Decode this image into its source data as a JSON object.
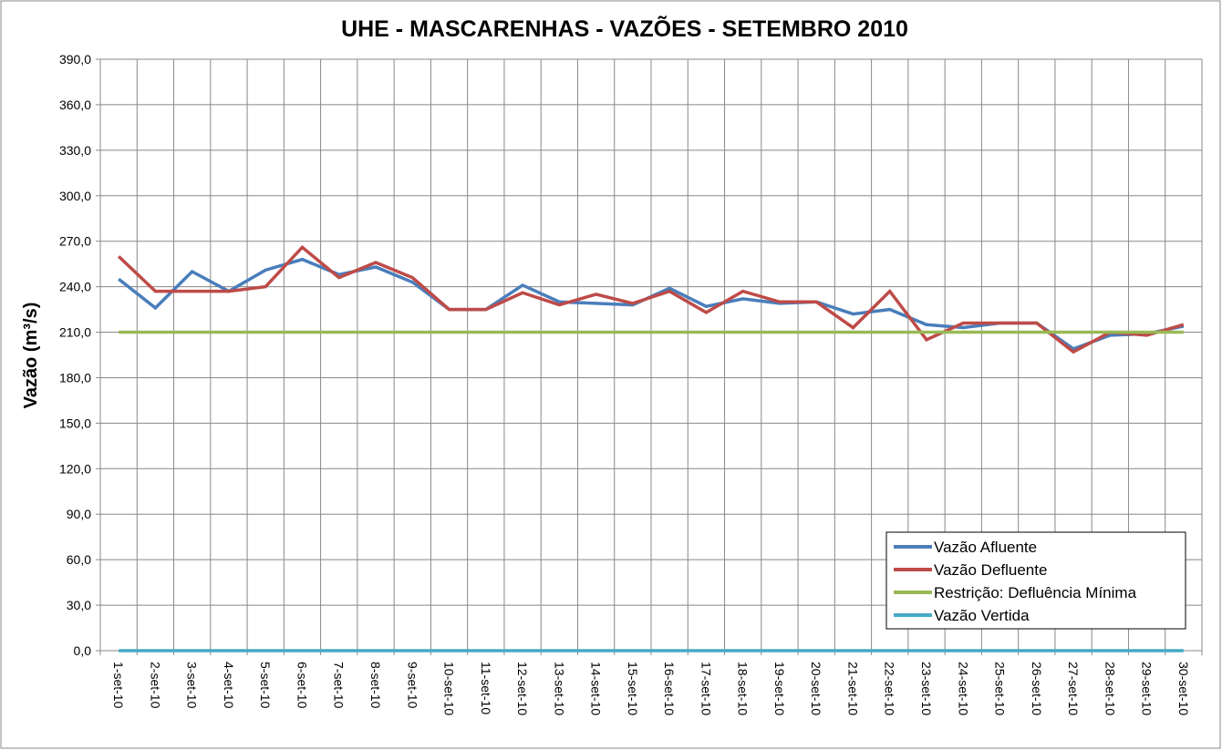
{
  "chart_data": {
    "type": "line",
    "title": "UHE - MASCARENHAS - VAZÕES -  SETEMBRO 2010",
    "y_label": "Vazão (m³/s)",
    "categories": [
      "1-set-10",
      "2-set-10",
      "3-set-10",
      "4-set-10",
      "5-set-10",
      "6-set-10",
      "7-set-10",
      "8-set-10",
      "9-set-10",
      "10-set-10",
      "11-set-10",
      "12-set-10",
      "13-set-10",
      "14-set-10",
      "15-set-10",
      "16-set-10",
      "17-set-10",
      "18-set-10",
      "19-set-10",
      "20-set-10",
      "21-set-10",
      "22-set-10",
      "23-set-10",
      "24-set-10",
      "25-set-10",
      "26-set-10",
      "27-set-10",
      "28-set-10",
      "29-set-10",
      "30-set-10"
    ],
    "series": [
      {
        "name": "Vazão Afluente",
        "color": "#4a7ebb",
        "values": [
          245,
          226,
          250,
          237,
          251,
          258,
          248,
          253,
          243,
          225,
          225,
          241,
          230,
          229,
          228,
          239,
          227,
          232,
          229,
          230,
          222,
          225,
          215,
          213,
          216,
          216,
          199,
          208,
          209,
          214
        ]
      },
      {
        "name": "Vazão Defluente",
        "color": "#be4b48",
        "values": [
          260,
          237,
          237,
          237,
          240,
          266,
          246,
          256,
          246,
          225,
          225,
          236,
          228,
          235,
          229,
          237,
          223,
          237,
          230,
          230,
          213,
          237,
          205,
          216,
          216,
          216,
          197,
          210,
          208,
          215
        ]
      },
      {
        "name": "Restrição: Defluência Mínima",
        "color": "#98b954",
        "values": [
          210,
          210,
          210,
          210,
          210,
          210,
          210,
          210,
          210,
          210,
          210,
          210,
          210,
          210,
          210,
          210,
          210,
          210,
          210,
          210,
          210,
          210,
          210,
          210,
          210,
          210,
          210,
          210,
          210,
          210
        ]
      },
      {
        "name": "Vazão Vertida",
        "color": "#46aac5",
        "values": [
          0,
          0,
          0,
          0,
          0,
          0,
          0,
          0,
          0,
          0,
          0,
          0,
          0,
          0,
          0,
          0,
          0,
          0,
          0,
          0,
          0,
          0,
          0,
          0,
          0,
          0,
          0,
          0,
          0,
          0
        ]
      }
    ],
    "ylim": [
      0,
      390
    ],
    "yticks": [
      {
        "value": 0,
        "label": "0,0"
      },
      {
        "value": 30,
        "label": "30,0"
      },
      {
        "value": 60,
        "label": "60,0"
      },
      {
        "value": 90,
        "label": "90,0"
      },
      {
        "value": 120,
        "label": "120,0"
      },
      {
        "value": 150,
        "label": "150,0"
      },
      {
        "value": 180,
        "label": "180,0"
      },
      {
        "value": 210,
        "label": "210,0"
      },
      {
        "value": 240,
        "label": "240,0"
      },
      {
        "value": 270,
        "label": "270,0"
      },
      {
        "value": 300,
        "label": "300,0"
      },
      {
        "value": 330,
        "label": "330,0"
      },
      {
        "value": 360,
        "label": "360,0"
      },
      {
        "value": 390,
        "label": "390,0"
      }
    ],
    "grid": true,
    "legend": "lower right"
  }
}
